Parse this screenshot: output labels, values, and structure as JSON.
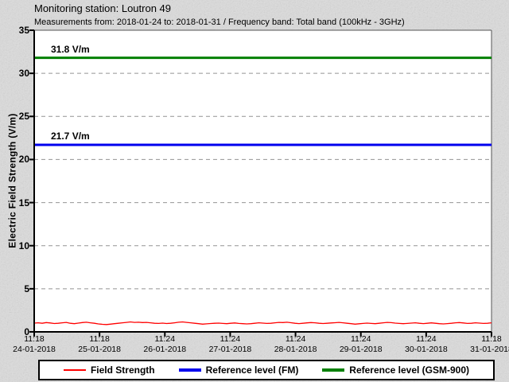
{
  "header": {
    "title": "Monitoring station: Loutron 49",
    "subtitle": "Measurements from: 2018-01-24 to: 2018-01-31 / Frequency band: Total band (100kHz - 3GHz)"
  },
  "colors": {
    "background": "#d9d9d9",
    "plot_background": "#ffffff",
    "axis": "#000000",
    "gridline": "#949494",
    "field_strength": "#ff0000",
    "reference_fm": "#0000ee",
    "reference_gsm": "#008000"
  },
  "chart_data": {
    "type": "line",
    "title": "Monitoring station: Loutron 49",
    "subtitle": "Measurements from: 2018-01-24 to: 2018-01-31 / Frequency band: Total band (100kHz - 3GHz)",
    "xlabel": "",
    "ylabel": "Electric Field Strength (V/m)",
    "ylim": [
      0,
      35
    ],
    "yticks": [
      0,
      5,
      10,
      15,
      20,
      25,
      30,
      35
    ],
    "grid": "horizontal dashed gridlines at 5,10,15,20,25,30",
    "legend_position": "bottom",
    "x_ticks": [
      {
        "time": "11:18",
        "date": "24-01-2018"
      },
      {
        "time": "11:18",
        "date": "25-01-2018"
      },
      {
        "time": "11:24",
        "date": "26-01-2018"
      },
      {
        "time": "11:24",
        "date": "27-01-2018"
      },
      {
        "time": "11:24",
        "date": "28-01-2018"
      },
      {
        "time": "11:24",
        "date": "29-01-2018"
      },
      {
        "time": "11:24",
        "date": "30-01-2018"
      },
      {
        "time": "11:18",
        "date": "31-01-2018"
      }
    ],
    "reference_lines": [
      {
        "name": "Reference level (GSM-900)",
        "label": "31.8 V/m",
        "value": 31.8,
        "color": "#008000"
      },
      {
        "name": "Reference level (FM)",
        "label": "21.7 V/m",
        "value": 21.7,
        "color": "#0000ee"
      }
    ],
    "series": [
      {
        "name": "Field Strength",
        "color": "#ff0000",
        "approx_level_vm": 1.0,
        "values": [
          1.02,
          1.05,
          1.0,
          1.08,
          1.03,
          0.97,
          1.0,
          1.05,
          1.1,
          1.0,
          0.95,
          1.02,
          1.08,
          1.12,
          1.05,
          1.0,
          0.92,
          0.88,
          0.85,
          0.9,
          0.95,
          1.0,
          1.05,
          1.1,
          1.15,
          1.1,
          1.12,
          1.08,
          1.1,
          1.05,
          1.0,
          0.98,
          1.02,
          0.97,
          1.0,
          1.05,
          1.12,
          1.15,
          1.1,
          1.05,
          1.0,
          0.95,
          0.9,
          0.93,
          0.97,
          1.0,
          1.02,
          0.98,
          0.95,
          1.0,
          1.03,
          0.98,
          0.95,
          0.92,
          0.95,
          1.0,
          1.05,
          1.02,
          0.98,
          1.0,
          1.05,
          1.1,
          1.08,
          1.12,
          1.06,
          1.0,
          0.96,
          1.0,
          1.04,
          1.08,
          1.05,
          1.0,
          0.97,
          1.0,
          1.03,
          1.06,
          1.1,
          1.05,
          1.0,
          0.95,
          0.9,
          0.94,
          0.98,
          1.02,
          0.98,
          0.95,
          1.0,
          1.05,
          1.1,
          1.07,
          1.02,
          0.98,
          0.95,
          0.98,
          1.02,
          1.05,
          1.0,
          0.96,
          1.0,
          1.04,
          1.0,
          0.95,
          0.92,
          0.96,
          1.0,
          1.05,
          1.08,
          1.03,
          0.98,
          1.0,
          1.05,
          1.02,
          0.98,
          1.0,
          1.05
        ]
      }
    ],
    "legend": [
      {
        "label": "Field Strength",
        "color": "#ff0000"
      },
      {
        "label": "Reference level (FM)",
        "color": "#0000ee"
      },
      {
        "label": "Reference level (GSM-900)",
        "color": "#008000"
      }
    ]
  }
}
